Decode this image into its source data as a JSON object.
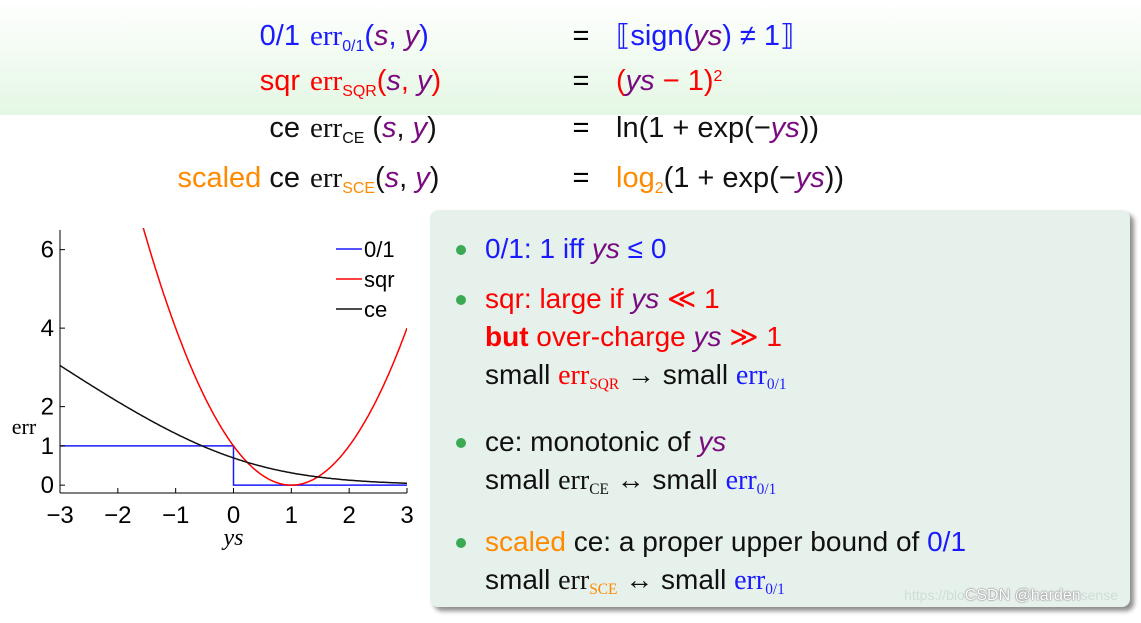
{
  "equations": [
    {
      "name": "0/1",
      "name_color": "blue",
      "lhs_sub": "0/1",
      "sub_color": "blue",
      "rhs_parts": [
        {
          "t": "⟦sign(",
          "c": "blue"
        },
        {
          "t": "ys",
          "c": "it"
        },
        {
          "t": ") ≠ 1⟧",
          "c": "blue"
        }
      ]
    },
    {
      "name": "sqr",
      "name_color": "red",
      "lhs_sub": "SQR",
      "sub_color": "red",
      "rhs_parts": [
        {
          "t": "(",
          "c": "red"
        },
        {
          "t": "ys",
          "c": "it"
        },
        {
          "t": " − 1)",
          "c": "red"
        },
        {
          "t": "2",
          "c": "red",
          "sup": true
        }
      ]
    },
    {
      "name": "ce",
      "name_color": "black",
      "lhs_sub": "CE",
      "sub_color": "black",
      "rhs_parts": [
        {
          "t": "ln(1 + exp(−",
          "c": "black"
        },
        {
          "t": "ys",
          "c": "it"
        },
        {
          "t": "))",
          "c": "black"
        }
      ]
    },
    {
      "name_pre": "scaled",
      "name": " ce",
      "name_color": "black",
      "lhs_sub": "SCE",
      "sub_color": "orange",
      "rhs_parts": [
        {
          "t": "log",
          "c": "orange"
        },
        {
          "t": "2",
          "c": "orange",
          "sub": true
        },
        {
          "t": "(1 + exp(−",
          "c": "black"
        },
        {
          "t": "ys",
          "c": "it"
        },
        {
          "t": "))",
          "c": "black"
        }
      ]
    }
  ],
  "err_word": "err",
  "args": {
    "s": "s",
    "y": "y"
  },
  "equals": "=",
  "bullets": {
    "b1": {
      "pre": "0/1: 1 iff ",
      "ys": "ys",
      "post": " ≤ 0"
    },
    "b2": {
      "pre": "sqr: large if ",
      "ys": "ys",
      "post": " ≪ 1",
      "but": "but",
      "mid": " over-charge ",
      "post2": " ≫ 1",
      "small": "small ",
      "arrow": " → small ",
      "sub_sqr": "SQR",
      "sub01": "0/1"
    },
    "b3": {
      "pre": "ce: monotonic of ",
      "ys": "ys",
      "small": "small ",
      "arrow": " ↔ small ",
      "sub_ce": "CE",
      "sub01": "0/1"
    },
    "b4": {
      "scaled": "scaled",
      "rest": " ce: a proper upper bound of ",
      "z": "0/1",
      "small": "small ",
      "arrow": " ↔ small ",
      "sub_sce": "SCE",
      "sub01": "0/1"
    }
  },
  "watermark": {
    "faint": "https://blo",
    "text": "CSDN @harden",
    "faint2": "sense"
  },
  "colors": {
    "blue": "#1a1aff",
    "red": "#ff0000",
    "orange": "#ff8a00",
    "purple": "#7a0a80",
    "green_dot": "#3aaa55"
  },
  "chart_data": {
    "type": "line",
    "xlabel": "ys",
    "ylabel": "err",
    "xlim": [
      -3,
      3
    ],
    "ylim": [
      -0.2,
      6.5
    ],
    "xticks": [
      -3,
      -2,
      -1,
      0,
      1,
      2,
      3
    ],
    "xtick_labels": [
      "−3",
      "−2",
      "−1",
      "0",
      "1",
      "2",
      "3"
    ],
    "yticks": [
      0,
      1,
      2,
      4,
      6
    ],
    "legend": "top-right",
    "series": [
      {
        "name": "0/1",
        "color": "#1a1aff",
        "kind": "step",
        "x": [
          -3,
          0,
          0,
          3
        ],
        "y": [
          1,
          1,
          0,
          0
        ]
      },
      {
        "name": "sqr",
        "color": "#ff0000",
        "kind": "function",
        "func": "(x-1)^2",
        "x": [
          -1.55,
          -1,
          -0.5,
          0,
          0.5,
          1,
          1.5,
          2,
          2.5,
          3
        ],
        "y": [
          6.5,
          4,
          2.25,
          1,
          0.25,
          0,
          0.25,
          1,
          2.25,
          4
        ]
      },
      {
        "name": "ce",
        "color": "#111111",
        "kind": "function",
        "func": "ln(1+exp(-x))",
        "x": [
          -3,
          -2,
          -1,
          0,
          1,
          2,
          3
        ],
        "y": [
          3.05,
          2.13,
          1.31,
          0.69,
          0.31,
          0.13,
          0.05
        ]
      }
    ]
  }
}
